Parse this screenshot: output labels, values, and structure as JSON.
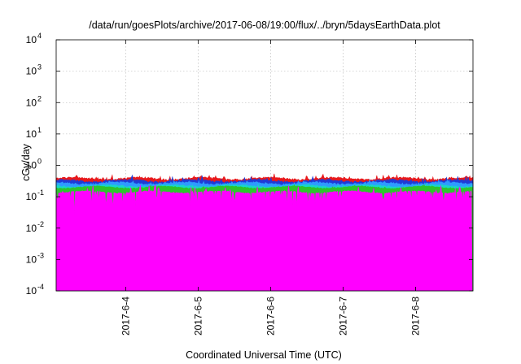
{
  "chart_data": {
    "type": "area",
    "title": "/data/run/goesPlots/archive/2017-06-08/19:00/flux/../bryn/5daysEarthData.plot",
    "xlabel": "Coordinated Universal Time (UTC)",
    "ylabel": "cGy/day",
    "yscale": "log",
    "ylim": [
      0.0001,
      10000
    ],
    "xlim": [
      "2017-06-03 01:00",
      "2017-06-08 19:00"
    ],
    "grid": true,
    "legend": "none",
    "y_ticks": [
      {
        "value": 0.0001,
        "base": "10",
        "exp": "-4"
      },
      {
        "value": 0.001,
        "base": "10",
        "exp": "-3"
      },
      {
        "value": 0.01,
        "base": "10",
        "exp": "-2"
      },
      {
        "value": 0.1,
        "base": "10",
        "exp": "-1"
      },
      {
        "value": 1,
        "base": "10",
        "exp": "0"
      },
      {
        "value": 10,
        "base": "10",
        "exp": "1"
      },
      {
        "value": 100,
        "base": "10",
        "exp": "2"
      },
      {
        "value": 1000,
        "base": "10",
        "exp": "3"
      },
      {
        "value": 10000,
        "base": "10",
        "exp": "4"
      }
    ],
    "x_ticks": [
      {
        "value": "2017-06-04 00:00",
        "label": "2017-6-4"
      },
      {
        "value": "2017-06-05 00:00",
        "label": "2017-6-5"
      },
      {
        "value": "2017-06-06 00:00",
        "label": "2017-6-6"
      },
      {
        "value": "2017-06-07 00:00",
        "label": "2017-6-7"
      },
      {
        "value": "2017-06-08 00:00",
        "label": "2017-6-8"
      }
    ],
    "series": [
      {
        "color": "#e8191c",
        "baseline": 0.38,
        "spread": 0.06,
        "spike": 0.15
      },
      {
        "color": "#1f3bd6",
        "baseline": 0.32,
        "spread": 0.07,
        "spike": 0.18
      },
      {
        "color": "#2e9bff",
        "baseline": 0.27,
        "spread": 0.06,
        "spike": 0.12
      },
      {
        "color": "#17d6c8",
        "baseline": 0.22,
        "spread": 0.05,
        "spike": 0.1
      },
      {
        "color": "#2ec42e",
        "baseline": 0.2,
        "spread": 0.03,
        "spike": 0.05
      },
      {
        "color": "#ff00ff",
        "baseline": 0.14,
        "spread": 0.04,
        "spike": 0.35,
        "final_value": 0.0001
      }
    ]
  }
}
